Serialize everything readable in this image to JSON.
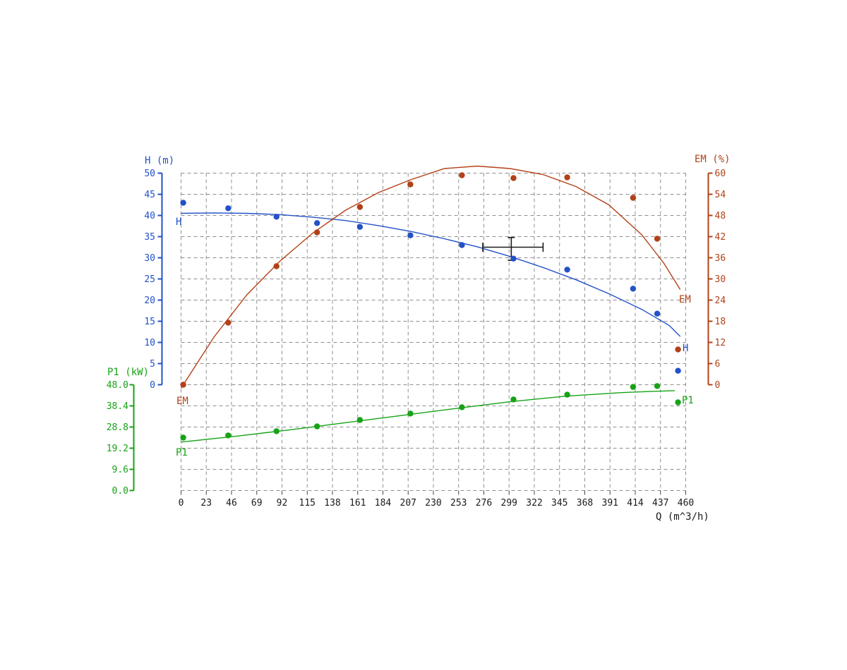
{
  "chart_data": {
    "type": "scatter",
    "title": "",
    "description": "Pump performance test curves: head H, efficiency EM and input power P1 versus flow rate Q, with fitted curves, measured scatter points and a rated duty-point tolerance cross",
    "grid": true,
    "x_axis": {
      "label": "Q (m^3/h)",
      "min": 0,
      "max": 460,
      "ticks": [
        0,
        23,
        46,
        69,
        92,
        115,
        138,
        161,
        184,
        207,
        230,
        253,
        276,
        299,
        322,
        345,
        368,
        391,
        414,
        437,
        460
      ]
    },
    "left_axis": {
      "label": "H (m)",
      "min": 0,
      "max": 50,
      "ticks": [
        50,
        45,
        40,
        35,
        30,
        25,
        20,
        15,
        10,
        5,
        0
      ],
      "color": "#2351c8"
    },
    "right_axis": {
      "label": "EM (%)",
      "min": 0,
      "max": 60,
      "ticks": [
        60,
        54,
        48,
        42,
        36,
        30,
        24,
        18,
        12,
        6,
        0
      ],
      "color": "#b34118"
    },
    "lower_left_axis": {
      "label": "P1 (kW)",
      "min": 0,
      "max": 48,
      "tick_labels": [
        "48.0",
        "38.4",
        "28.8",
        "19.2",
        "9.6",
        "0.0"
      ],
      "tick_values": [
        48,
        38.4,
        28.8,
        19.2,
        9.6,
        0
      ],
      "color": "#16a316"
    },
    "curve_labels": {
      "h_left": "H",
      "h_right": "H",
      "em_left": "EM",
      "em_right": "EM",
      "p1_left": "P1",
      "p1_right": "P1"
    },
    "series": [
      {
        "id": "h",
        "name": "H",
        "unit": "m",
        "axis": "left",
        "color": "#2351c8",
        "scatter": {
          "q": [
            2,
            43,
            87,
            124,
            163,
            209,
            256,
            303,
            352,
            412,
            434,
            453
          ],
          "v": [
            43.0,
            41.7,
            39.7,
            38.2,
            37.3,
            35.3,
            33.0,
            29.8,
            27.2,
            22.7,
            16.8,
            3.3
          ]
        },
        "curve": {
          "q": [
            0,
            30,
            60,
            90,
            120,
            150,
            180,
            210,
            240,
            270,
            300,
            330,
            360,
            390,
            420,
            445,
            455
          ],
          "v": [
            40.5,
            40.6,
            40.5,
            40.2,
            39.6,
            38.8,
            37.6,
            36.2,
            34.5,
            32.6,
            30.3,
            27.7,
            24.8,
            21.5,
            17.8,
            14.0,
            11.4
          ]
        }
      },
      {
        "id": "em",
        "name": "EM",
        "unit": "%",
        "axis": "right",
        "color": "#b34118",
        "scatter": {
          "q": [
            2,
            43,
            87,
            124,
            163,
            209,
            256,
            303,
            352,
            412,
            434,
            453
          ],
          "v": [
            0,
            17.6,
            33.6,
            43.2,
            50.4,
            56.8,
            59.4,
            58.6,
            58.8,
            53.0,
            41.4,
            10.0
          ]
        },
        "curve": {
          "q": [
            0,
            30,
            60,
            90,
            120,
            150,
            180,
            210,
            240,
            270,
            300,
            330,
            360,
            390,
            420,
            440,
            455
          ],
          "v": [
            -1,
            13.5,
            25.5,
            35.0,
            43.0,
            49.5,
            54.5,
            58.2,
            61.3,
            62.0,
            61.3,
            59.6,
            56.2,
            51.0,
            42.5,
            34.5,
            27.0
          ]
        }
      },
      {
        "id": "p1",
        "name": "P1",
        "unit": "kW",
        "axis": "lower",
        "color": "#16a316",
        "scatter": {
          "q": [
            2,
            43,
            87,
            124,
            163,
            209,
            256,
            303,
            352,
            412,
            434,
            453
          ],
          "v": [
            24.0,
            25.0,
            26.9,
            29.1,
            32.0,
            34.9,
            37.8,
            41.3,
            43.5,
            47.0,
            47.4,
            40.0
          ]
        },
        "curve": {
          "q": [
            0,
            50,
            100,
            150,
            200,
            250,
            300,
            350,
            400,
            430,
            450
          ],
          "v": [
            22.0,
            24.6,
            27.6,
            30.8,
            34.0,
            37.2,
            40.3,
            42.8,
            44.4,
            45.0,
            45.3
          ]
        }
      }
    ],
    "duty_point": {
      "q": 301,
      "h": 32.5,
      "q_min": 275,
      "q_max": 330,
      "h_min": 29.4,
      "h_max": 34.8,
      "color": "#1a1a1a"
    },
    "colors": {
      "grid": "#8f8f8f",
      "x_tick": "#444444",
      "background": "#ffffff"
    }
  }
}
